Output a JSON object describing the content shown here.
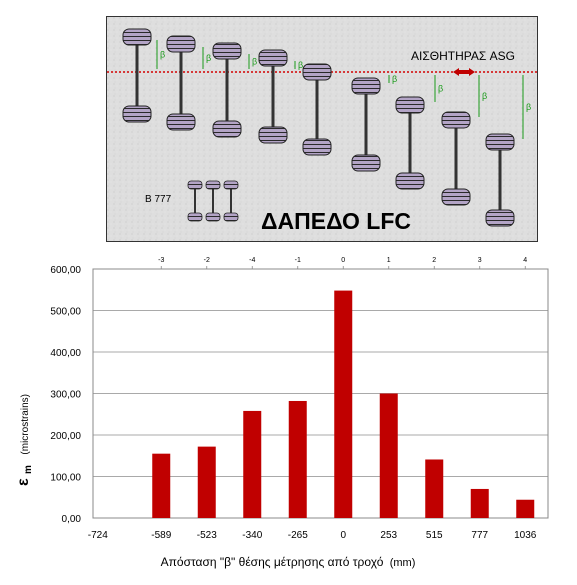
{
  "diagram": {
    "sensor_label": "ΑΙΣΘΗΤΗΡΑΣ ASG",
    "floor_label": "ΔΑΠΕΔΟ LFC",
    "bogie_label": "B 777",
    "beta_symbol": "β"
  },
  "chart_data": {
    "type": "bar",
    "categories": [
      "-724",
      "-589",
      "-523",
      "-340",
      "-265",
      "0",
      "253",
      "515",
      "777",
      "1036"
    ],
    "values": [
      null,
      155,
      172,
      258,
      282,
      548,
      300,
      141,
      70,
      44
    ],
    "top_axis_labels": [
      "-3",
      "-2",
      "-4",
      "-1",
      "0",
      "1",
      "2",
      "3",
      "4"
    ],
    "title": "",
    "xlabel": "Απόσταση \"β\" θέσης μέτρησης από τροχό",
    "xlabel_unit": "(mm)",
    "ylabel_symbol": "ε",
    "ylabel_sub": "m",
    "ylabel_unit": "(microstrains)",
    "ylim": [
      0,
      600
    ],
    "yticks": [
      "0,00",
      "100,00",
      "200,00",
      "300,00",
      "400,00",
      "500,00",
      "600,00"
    ],
    "grid": true,
    "bar_color": "#c00000"
  }
}
